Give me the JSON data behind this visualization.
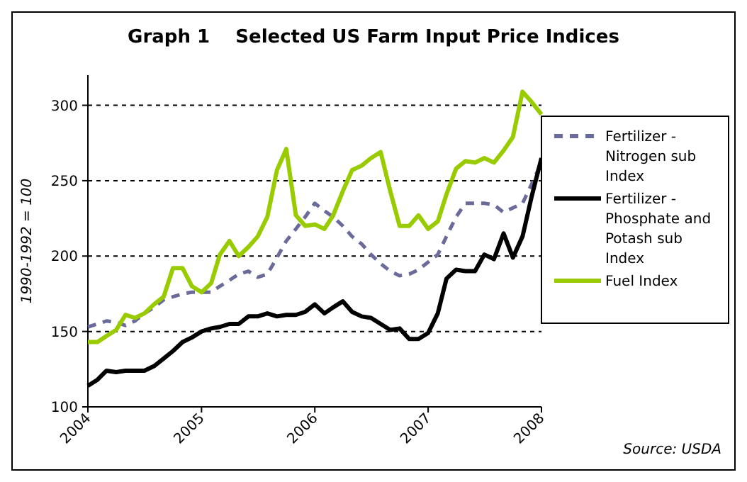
{
  "chart_data": {
    "type": "line",
    "title": "Graph 1    Selected US Farm Input Price Indices",
    "ylabel": "1990-1992 = 100",
    "annotations": [
      "Source: USDA"
    ],
    "xlim": [
      "2004-01",
      "2008-01"
    ],
    "xticks": [
      {
        "value": "2004-01",
        "label": "2004"
      },
      {
        "value": "2005-01",
        "label": "2005"
      },
      {
        "value": "2006-01",
        "label": "2006"
      },
      {
        "value": "2007-01",
        "label": "2007"
      },
      {
        "value": "2008-01",
        "label": "2008"
      }
    ],
    "x": [
      "2004-01",
      "2004-02",
      "2004-03",
      "2004-04",
      "2004-05",
      "2004-06",
      "2004-07",
      "2004-08",
      "2004-09",
      "2004-10",
      "2004-11",
      "2004-12",
      "2005-01",
      "2005-02",
      "2005-03",
      "2005-04",
      "2005-05",
      "2005-06",
      "2005-07",
      "2005-08",
      "2005-09",
      "2005-10",
      "2005-11",
      "2005-12",
      "2006-01",
      "2006-02",
      "2006-03",
      "2006-04",
      "2006-05",
      "2006-06",
      "2006-07",
      "2006-08",
      "2006-09",
      "2006-10",
      "2006-11",
      "2006-12",
      "2007-01",
      "2007-02",
      "2007-03",
      "2007-04",
      "2007-05",
      "2007-06",
      "2007-07",
      "2007-08",
      "2007-09",
      "2007-10",
      "2007-11",
      "2007-12",
      "2008-01"
    ],
    "ylim": [
      100,
      320
    ],
    "yticks": [
      100,
      150,
      200,
      250,
      300
    ],
    "grid": "y",
    "legend": "right",
    "marker": "none",
    "series": [
      {
        "name": "Fertilizer - Nitrogen sub Index",
        "color": "#6b6b9b",
        "line_style": "dashed",
        "values": [
          153,
          155,
          157,
          156,
          154,
          157,
          162,
          166,
          171,
          173,
          175,
          176,
          176,
          176,
          180,
          184,
          188,
          190,
          186,
          188,
          199,
          210,
          218,
          226,
          235,
          230,
          226,
          220,
          213,
          208,
          201,
          195,
          190,
          187,
          188,
          191,
          196,
          201,
          213,
          226,
          235,
          235,
          235,
          234,
          229,
          232,
          235,
          248,
          262
        ]
      },
      {
        "name": "Fertilizer - Phosphate and Potash sub Index",
        "color": "#000000",
        "line_style": "solid",
        "values": [
          114,
          118,
          124,
          123,
          124,
          124,
          124,
          127,
          132,
          137,
          143,
          146,
          150,
          152,
          153,
          155,
          155,
          160,
          160,
          162,
          160,
          161,
          161,
          163,
          168,
          162,
          166,
          170,
          163,
          160,
          159,
          155,
          151,
          152,
          145,
          145,
          149,
          162,
          185,
          191,
          190,
          190,
          201,
          198,
          215,
          199,
          213,
          240,
          265
        ]
      },
      {
        "name": "Fuel Index",
        "color": "#99cc00",
        "line_style": "solid",
        "values": [
          143,
          143,
          147,
          151,
          161,
          159,
          162,
          168,
          173,
          192,
          192,
          180,
          176,
          182,
          201,
          210,
          200,
          206,
          213,
          226,
          257,
          271,
          227,
          220,
          221,
          218,
          227,
          243,
          257,
          260,
          265,
          269,
          243,
          220,
          220,
          227,
          218,
          223,
          241,
          258,
          263,
          262,
          265,
          262,
          270,
          279,
          309,
          302,
          294
        ]
      }
    ]
  }
}
